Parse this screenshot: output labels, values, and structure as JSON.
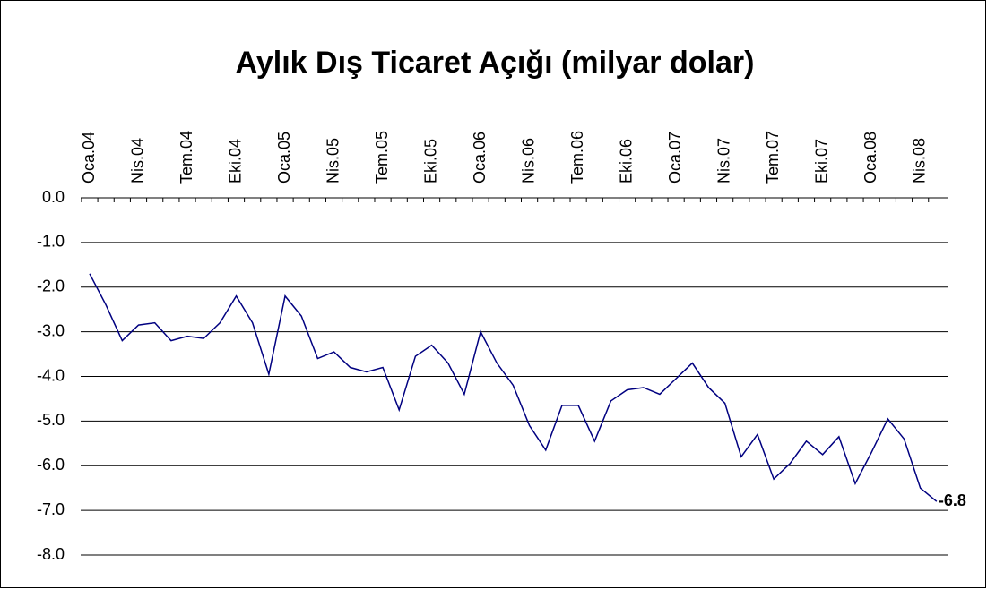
{
  "chart_data": {
    "type": "line",
    "title": "Aylık Dış Ticaret Açığı (milyar dolar)",
    "categories": [
      "Oca.04",
      null,
      null,
      "Nis.04",
      null,
      null,
      "Tem.04",
      null,
      null,
      "Eki.04",
      null,
      null,
      "Oca.05",
      null,
      null,
      "Nis.05",
      null,
      null,
      "Tem.05",
      null,
      null,
      "Eki.05",
      null,
      null,
      "Oca.06",
      null,
      null,
      "Nis.06",
      null,
      null,
      "Tem.06",
      null,
      null,
      "Eki.06",
      null,
      null,
      "Oca.07",
      null,
      null,
      "Nis.07",
      null,
      null,
      "Tem.07",
      null,
      null,
      "Eki.07",
      null,
      null,
      "Oca.08",
      null,
      null,
      "Nis.08",
      null
    ],
    "series": [
      {
        "color": "#000080",
        "values": [
          -1.7,
          -2.4,
          -3.2,
          -2.85,
          -2.8,
          -3.2,
          -3.1,
          -3.15,
          -2.8,
          -2.2,
          -2.8,
          -3.95,
          -2.2,
          -2.65,
          -3.6,
          -3.45,
          -3.8,
          -3.9,
          -3.8,
          -4.75,
          -3.55,
          -3.3,
          -3.7,
          -4.4,
          -3.0,
          -3.7,
          -4.2,
          -5.1,
          -5.65,
          -4.65,
          -4.65,
          -5.45,
          -4.55,
          -4.3,
          -4.25,
          -4.4,
          -4.05,
          -3.7,
          -4.25,
          -4.6,
          -5.8,
          -5.3,
          -6.3,
          -5.95,
          -5.45,
          -5.75,
          -5.35,
          -6.4,
          -5.7,
          -4.95,
          -5.4,
          -6.5,
          -6.8
        ]
      }
    ],
    "ylim": [
      -8,
      0
    ],
    "yticks": [
      {
        "value": 0,
        "label": "0.0"
      },
      {
        "value": -1,
        "label": "-1.0"
      },
      {
        "value": -2,
        "label": "-2.0"
      },
      {
        "value": -3,
        "label": "-3.0"
      },
      {
        "value": -4,
        "label": "-4.0"
      },
      {
        "value": -5,
        "label": "-5.0"
      },
      {
        "value": -6,
        "label": "-6.0"
      },
      {
        "value": -7,
        "label": "-7.0"
      },
      {
        "value": -8,
        "label": "-8.0"
      }
    ],
    "grid": true
  }
}
